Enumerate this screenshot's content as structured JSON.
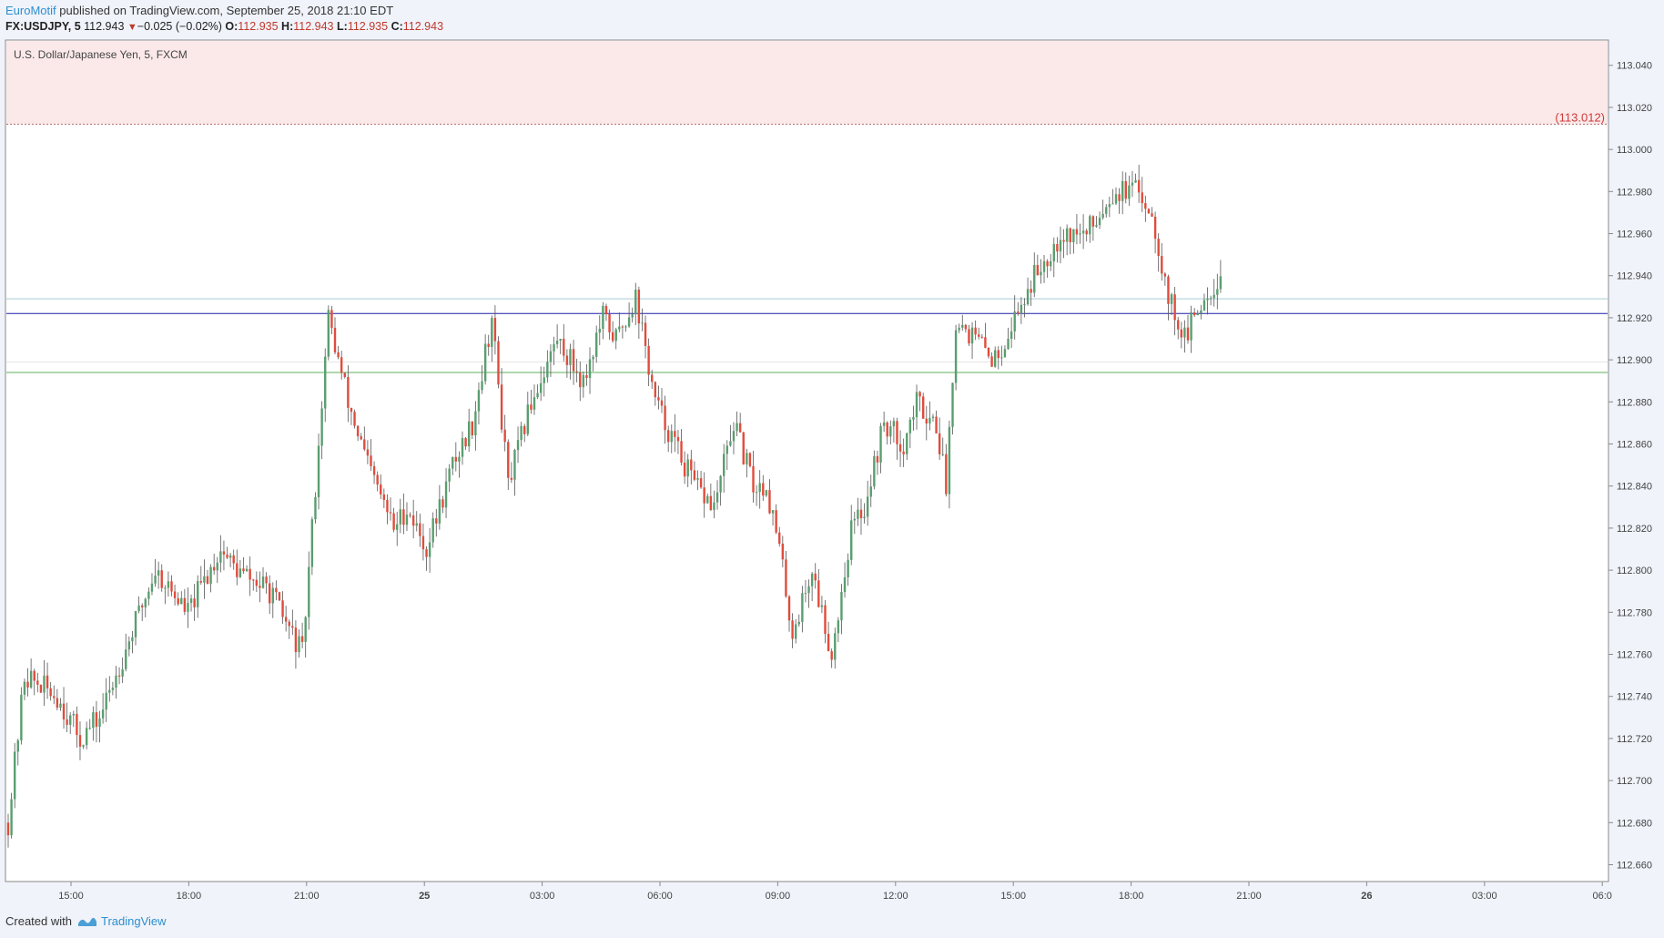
{
  "header": {
    "author": "EuroMotif",
    "published_text": "published on TradingView.com, September 25, 2018 21:10 EDT",
    "symbol": "FX:USDJPY, 5",
    "last_price": "112.943",
    "change": "−0.025 (−0.02%)",
    "open_label": "O:",
    "open": "112.935",
    "high_label": "H:",
    "high": "112.943",
    "low_label": "L:",
    "low": "112.935",
    "close_label": "C:",
    "close": "112.943"
  },
  "footer": {
    "created_with": "Created with",
    "brand": "TradingView"
  },
  "colors": {
    "up": "#5a9e6f",
    "down": "#e04c3c",
    "wick": "#555555",
    "zone": "#fbe9e9",
    "navy_line": "#1f1fa8",
    "green_line": "#7fbf7f",
    "light_line": "#b9d7dc",
    "zone_label": "#cf3a3a"
  },
  "chart_data": {
    "type": "candlestick",
    "title": "U.S. Dollar/Japanese Yen, 5, FXCM",
    "ylim": [
      112.652,
      113.052
    ],
    "y_ticks": [
      113.04,
      113.02,
      113.0,
      112.98,
      112.96,
      112.94,
      112.92,
      112.9,
      112.88,
      112.86,
      112.84,
      112.82,
      112.8,
      112.78,
      112.76,
      112.74,
      112.72,
      112.7,
      112.68,
      112.66
    ],
    "x_ticks": [
      "15:00",
      "18:00",
      "21:00",
      "25",
      "03:00",
      "06:00",
      "09:00",
      "12:00",
      "15:00",
      "18:00",
      "21:00",
      "26",
      "03:00",
      "06:0"
    ],
    "resistance_zone": {
      "from": 113.012,
      "to": 113.052,
      "label": "(113.012)"
    },
    "horizontal_lines": [
      {
        "value": 112.929,
        "style": "light"
      },
      {
        "value": 112.922,
        "style": "navy"
      },
      {
        "value": 112.894,
        "style": "green"
      },
      {
        "value": 112.899,
        "style": "faint"
      }
    ],
    "price_path": [
      [
        0,
        112.68
      ],
      [
        5,
        112.75
      ],
      [
        15,
        112.74
      ],
      [
        22,
        112.72
      ],
      [
        28,
        112.73
      ],
      [
        45,
        112.8
      ],
      [
        55,
        112.78
      ],
      [
        65,
        112.81
      ],
      [
        70,
        112.8
      ],
      [
        80,
        112.79
      ],
      [
        90,
        112.76
      ],
      [
        98,
        112.92
      ],
      [
        104,
        112.88
      ],
      [
        110,
        112.85
      ],
      [
        118,
        112.82
      ],
      [
        122,
        112.83
      ],
      [
        128,
        112.81
      ],
      [
        136,
        112.85
      ],
      [
        142,
        112.87
      ],
      [
        148,
        112.92
      ],
      [
        153,
        112.84
      ],
      [
        160,
        112.88
      ],
      [
        168,
        112.91
      ],
      [
        176,
        112.89
      ],
      [
        182,
        112.92
      ],
      [
        186,
        112.91
      ],
      [
        192,
        112.93
      ],
      [
        198,
        112.88
      ],
      [
        204,
        112.86
      ],
      [
        210,
        112.84
      ],
      [
        216,
        112.83
      ],
      [
        222,
        112.87
      ],
      [
        228,
        112.84
      ],
      [
        232,
        112.84
      ],
      [
        236,
        112.81
      ],
      [
        240,
        112.77
      ],
      [
        246,
        112.8
      ],
      [
        252,
        112.76
      ],
      [
        258,
        112.82
      ],
      [
        262,
        112.83
      ],
      [
        268,
        112.87
      ],
      [
        274,
        112.86
      ],
      [
        278,
        112.88
      ],
      [
        284,
        112.87
      ],
      [
        287,
        112.84
      ],
      [
        290,
        112.92
      ],
      [
        296,
        112.91
      ],
      [
        302,
        112.9
      ],
      [
        308,
        112.92
      ],
      [
        314,
        112.94
      ],
      [
        322,
        112.96
      ],
      [
        330,
        112.96
      ],
      [
        338,
        112.98
      ],
      [
        346,
        112.98
      ],
      [
        350,
        112.97
      ],
      [
        355,
        112.93
      ],
      [
        360,
        112.91
      ],
      [
        366,
        112.93
      ],
      [
        371,
        112.94
      ]
    ]
  }
}
